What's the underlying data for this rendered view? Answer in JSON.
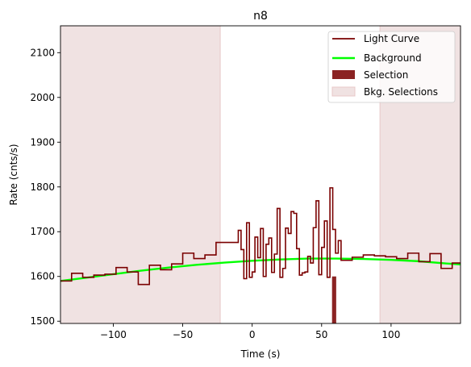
{
  "chart_data": {
    "type": "line",
    "title": "n8",
    "xlabel": "Time (s)",
    "ylabel": "Rate (cnts/s)",
    "xlim": [
      -138,
      150
    ],
    "ylim": [
      1495,
      2160
    ],
    "x_ticks": [
      -100,
      -50,
      0,
      50,
      100
    ],
    "x_tick_labels": [
      "−100",
      "−50",
      "0",
      "50",
      "100"
    ],
    "y_ticks": [
      1500,
      1600,
      1700,
      1800,
      1900,
      2000,
      2100
    ],
    "y_tick_labels": [
      "1500",
      "1600",
      "1700",
      "1800",
      "1900",
      "2000",
      "2100"
    ],
    "grid": false,
    "legend_position": "top-right",
    "legend": [
      "Light Curve",
      "Background",
      "Selection",
      "Bkg. Selections"
    ],
    "colors": {
      "light_curve": "#7a0000",
      "background": "#00ff00",
      "selection": "#8b2323",
      "bkg_selection": "#f0e2e2",
      "bkg_selection_edge": "#e8c8c8"
    },
    "bkg_selections": [
      [
        -138,
        -23
      ],
      [
        92,
        150
      ]
    ],
    "selection": [
      57.5,
      60.5
    ],
    "background": {
      "x": [
        -138,
        -120,
        -100,
        -80,
        -60,
        -40,
        -20,
        0,
        20,
        40,
        60,
        80,
        100,
        120,
        140,
        150
      ],
      "y": [
        1590,
        1597,
        1605,
        1613,
        1620,
        1626,
        1631,
        1635,
        1638,
        1640,
        1640,
        1639,
        1637,
        1634,
        1629,
        1627
      ]
    },
    "light_curve": {
      "edges": [
        -138,
        -130,
        -122,
        -114,
        -106,
        -98,
        -90,
        -82,
        -74,
        -66,
        -58,
        -50,
        -42,
        -34,
        -26,
        -18,
        -10,
        -8,
        -6,
        -4,
        -2,
        0,
        2,
        4,
        6,
        8,
        10,
        12,
        14,
        16,
        18,
        20,
        22,
        24,
        26,
        28,
        30,
        32,
        34,
        36,
        38,
        40,
        42,
        44,
        46,
        48,
        50,
        52,
        54,
        56,
        58,
        60,
        62,
        64,
        72,
        80,
        88,
        96,
        104,
        112,
        120,
        128,
        136,
        144,
        150
      ],
      "rates": [
        1590,
        1607,
        1598,
        1603,
        1605,
        1620,
        1610,
        1582,
        1625,
        1615,
        1628,
        1652,
        1640,
        1648,
        1676,
        1676,
        1703,
        1660,
        1595,
        1720,
        1598,
        1610,
        1688,
        1642,
        1707,
        1600,
        1672,
        1686,
        1609,
        1650,
        1752,
        1598,
        1618,
        1708,
        1696,
        1745,
        1741,
        1662,
        1603,
        1608,
        1610,
        1645,
        1630,
        1709,
        1769,
        1604,
        1665,
        1724,
        1598,
        1798,
        1705,
        1652,
        1680,
        1636,
        1643,
        1648,
        1646,
        1644,
        1640,
        1652,
        1633,
        1651,
        1618,
        1630
      ]
    }
  }
}
